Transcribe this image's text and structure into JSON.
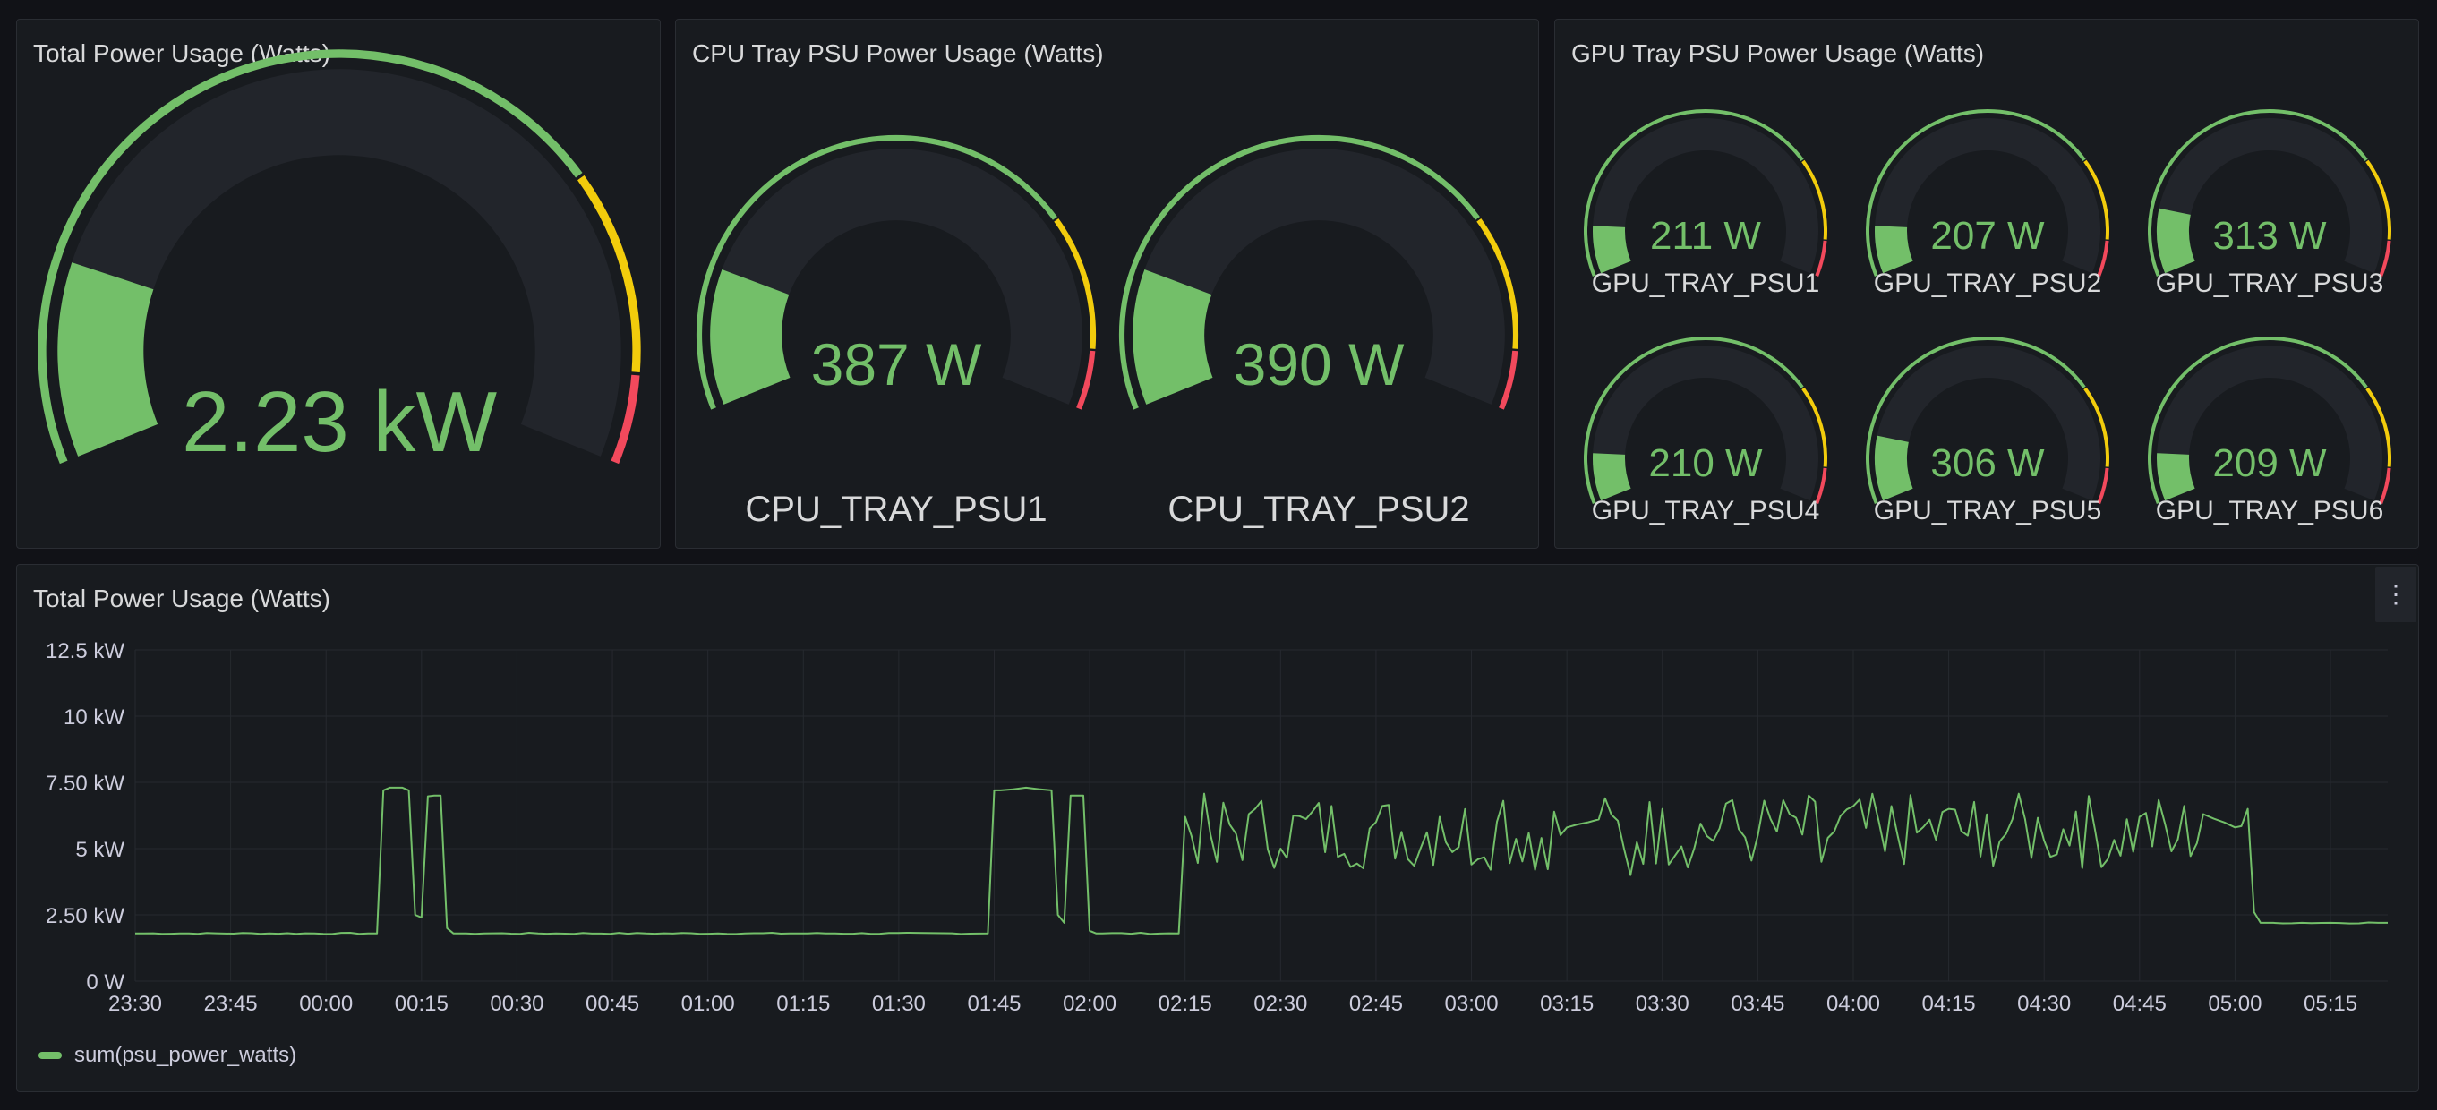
{
  "colors": {
    "green": "#73bf69",
    "yellow": "#f2cc0c",
    "red": "#f2495c",
    "track": "#22252b",
    "panel_bg": "#181b1f"
  },
  "total_panel": {
    "title": "Total Power Usage (Watts)",
    "value": "2.23 kW",
    "fill_fraction": 0.18
  },
  "cpu_panel": {
    "title": "CPU Tray PSU Power Usage (Watts)",
    "gauges": [
      {
        "label": "CPU_TRAY_PSU1",
        "value": "387 W",
        "fill_fraction": 0.19
      },
      {
        "label": "CPU_TRAY_PSU2",
        "value": "390 W",
        "fill_fraction": 0.19
      }
    ]
  },
  "gpu_panel": {
    "title": "GPU Tray PSU Power Usage (Watts)",
    "gauges": [
      {
        "label": "GPU_TRAY_PSU1",
        "value": "211 W",
        "fill_fraction": 0.11
      },
      {
        "label": "GPU_TRAY_PSU2",
        "value": "207 W",
        "fill_fraction": 0.11
      },
      {
        "label": "GPU_TRAY_PSU3",
        "value": "313 W",
        "fill_fraction": 0.15
      },
      {
        "label": "GPU_TRAY_PSU4",
        "value": "210 W",
        "fill_fraction": 0.11
      },
      {
        "label": "GPU_TRAY_PSU5",
        "value": "306 W",
        "fill_fraction": 0.15
      },
      {
        "label": "GPU_TRAY_PSU6",
        "value": "209 W",
        "fill_fraction": 0.11
      }
    ]
  },
  "timeseries_panel": {
    "title": "Total Power Usage (Watts)",
    "menu_icon": "kebab-menu-icon",
    "legend_label": "sum(psu_power_watts)"
  },
  "chart_data": {
    "type": "line",
    "title": "Total Power Usage (Watts)",
    "xlabel": "",
    "ylabel": "",
    "y_unit": "kW",
    "ylim": [
      0,
      12.5
    ],
    "y_ticks": [
      0,
      2.5,
      5,
      7.5,
      10,
      12.5
    ],
    "y_tick_labels": [
      "0 W",
      "2.50 kW",
      "5 kW",
      "7.50 kW",
      "10 kW",
      "12.5 kW"
    ],
    "x_tick_labels": [
      "23:30",
      "23:45",
      "00:00",
      "00:15",
      "00:30",
      "00:45",
      "01:00",
      "01:15",
      "01:30",
      "01:45",
      "02:00",
      "02:15",
      "02:30",
      "02:45",
      "03:00",
      "03:15",
      "03:30",
      "03:45",
      "04:00",
      "04:15",
      "04:30",
      "04:45",
      "05:00",
      "05:15"
    ],
    "x_start": "23:30",
    "x_end": "05:24",
    "grid": true,
    "legend_position": "bottom-left",
    "series": [
      {
        "name": "sum(psu_power_watts)",
        "color": "#73bf69",
        "x": [
          "23:30",
          "00:08",
          "00:09",
          "00:10",
          "00:12",
          "00:13",
          "00:14",
          "00:15",
          "00:17",
          "00:18",
          "00:19",
          "00:20",
          "00:21",
          "00:22",
          "01:44",
          "01:45",
          "01:46",
          "01:50",
          "01:54",
          "01:55",
          "01:56",
          "01:57",
          "01:59",
          "02:00",
          "02:01",
          "02:02",
          "02:14",
          "02:15",
          "02:20",
          "02:25",
          "02:30",
          "02:35",
          "02:40",
          "02:45",
          "02:50",
          "02:55",
          "03:00",
          "03:05",
          "03:10",
          "03:15",
          "03:20",
          "03:25",
          "03:30",
          "03:35",
          "03:40",
          "03:45",
          "03:50",
          "03:55",
          "04:00",
          "04:05",
          "04:10",
          "04:15",
          "04:20",
          "04:25",
          "04:30",
          "04:35",
          "04:40",
          "04:45",
          "04:50",
          "04:55",
          "05:00",
          "05:02",
          "05:03",
          "05:04",
          "05:06",
          "05:24"
        ],
        "values": [
          1.8,
          1.8,
          7.2,
          7.3,
          7.3,
          7.2,
          2.5,
          2.4,
          7.0,
          7.0,
          2.0,
          1.8,
          1.8,
          1.8,
          1.8,
          7.2,
          7.2,
          7.3,
          7.2,
          2.5,
          2.2,
          7.0,
          7.0,
          1.9,
          1.8,
          1.8,
          1.8,
          6.2,
          4.5,
          6.3,
          5.0,
          6.4,
          4.8,
          6.0,
          4.6,
          6.2,
          4.4,
          6.8,
          4.2,
          5.8,
          6.1,
          4.0,
          6.5,
          5.0,
          6.7,
          5.5,
          6.3,
          4.5,
          6.6,
          4.9,
          5.6,
          6.5,
          4.7,
          6.1,
          5.3,
          6.4,
          4.6,
          6.2,
          4.9,
          6.3,
          5.8,
          6.5,
          2.6,
          2.2,
          2.2,
          2.2
        ]
      }
    ]
  }
}
